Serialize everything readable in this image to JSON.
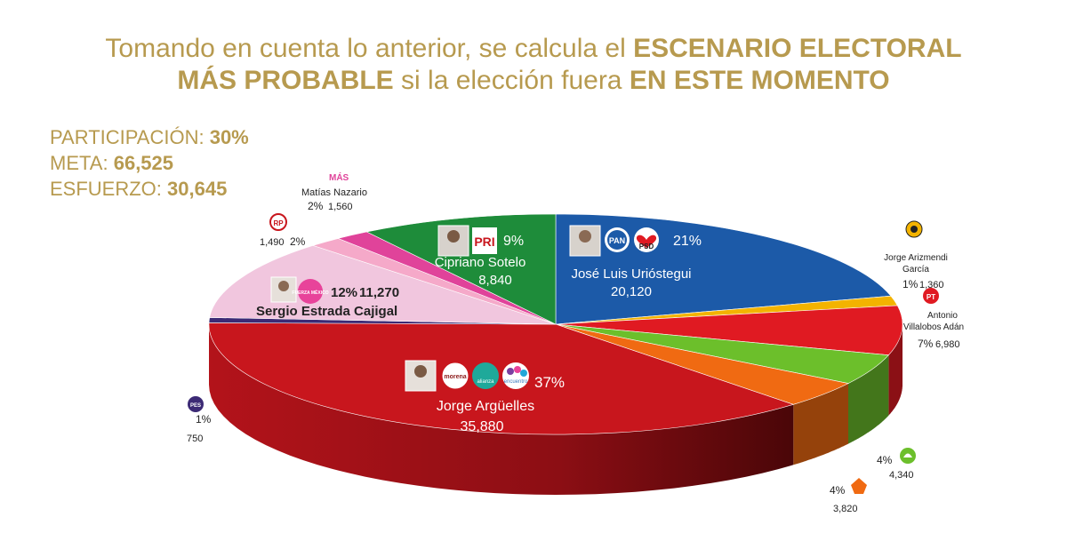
{
  "header": {
    "line1_pre": "Tomando en cuenta lo anterior, se calcula el ",
    "line1_bold": "ESCENARIO ELECTORAL",
    "line2_bold1": "MÁS PROBABLE",
    "line2_mid": " si la elección fuera ",
    "line2_bold2": "EN ESTE MOMENTO"
  },
  "stats": {
    "participacion_label": "PARTICIPACIÓN: ",
    "participacion_value": "30%",
    "meta_label": "META: ",
    "meta_value": "66,525",
    "esfuerzo_label": "ESFUERZO: ",
    "esfuerzo_value": "30,645"
  },
  "colors": {
    "title": "#b79a4f",
    "pan": "#1c5aa8",
    "pri": "#1e8c3a",
    "morena": "#c8161d",
    "fuerza": "#f1c6de",
    "pes": "#3c2a75"
  },
  "chart_data": {
    "type": "pie",
    "title": "Escenario electoral más probable",
    "series": [
      {
        "name": "José Luis Urióstegui",
        "parties": [
          "PAN",
          "PSD"
        ],
        "percent": 21,
        "votes": 20120,
        "color": "#1c5aa8"
      },
      {
        "name": "Jorge Arizmendi García",
        "parties": [
          "MC"
        ],
        "percent": 1,
        "votes": 1360,
        "color": "#f3b300"
      },
      {
        "name": "Antonio Villalobos Adán",
        "parties": [
          "PT"
        ],
        "percent": 7,
        "votes": 6980,
        "color": "#e01a22"
      },
      {
        "name": "",
        "parties": [
          "Partido Verde"
        ],
        "percent": 4,
        "votes": 4340,
        "color": "#6cbf2b"
      },
      {
        "name": "",
        "parties": [
          "Movimiento Ciudadano"
        ],
        "percent": 4,
        "votes": 3820,
        "color": "#f06a12"
      },
      {
        "name": "Jorge Argüelles",
        "parties": [
          "Morena",
          "Alianza",
          "Encuentro Social"
        ],
        "percent": 37,
        "votes": 35880,
        "color": "#c8161d"
      },
      {
        "name": "",
        "parties": [
          "PES"
        ],
        "percent": 1,
        "votes": 750,
        "color": "#3c2a75"
      },
      {
        "name": "Sergio Estrada Cajigal",
        "parties": [
          "Fuerza por México"
        ],
        "percent": 12,
        "votes": 11270,
        "color": "#f1c6de"
      },
      {
        "name": "",
        "parties": [
          "RP"
        ],
        "percent": 2,
        "votes": 1490,
        "color": "#f5a9c9"
      },
      {
        "name": "Matías Nazario",
        "parties": [
          "Más"
        ],
        "percent": 2,
        "votes": 1560,
        "color": "#e0439a"
      },
      {
        "name": "Cipriano Sotelo",
        "parties": [
          "PRI"
        ],
        "percent": 9,
        "votes": 8840,
        "color": "#1e8c3a"
      }
    ],
    "labels": {
      "uriostegui_pct": "21%",
      "uriostegui_name": "José Luis Urióstegui",
      "uriostegui_votes": "20,120",
      "sotelo_pct": "9%",
      "sotelo_name": "Cipriano Sotelo",
      "sotelo_votes": "8,840",
      "arguelles_pct": "37%",
      "arguelles_name": "Jorge Argüelles",
      "arguelles_votes": "35,880",
      "estrada_pct": "12%",
      "estrada_votes": "11,270",
      "estrada_name": "Sergio Estrada Cajigal",
      "nazario_name": "Matías Nazario",
      "nazario_pct": "2%",
      "nazario_votes": "1,560",
      "rp_votes": "1,490",
      "rp_pct": "2%",
      "arizmendi_name1": "Jorge Arizmendi",
      "arizmendi_name2": "García",
      "arizmendi_pct": "1%",
      "arizmendi_votes": "1,360",
      "villalobos_name1": "Antonio",
      "villalobos_name2": "Villalobos Adán",
      "villalobos_pct": "7%",
      "villalobos_votes": "6,980",
      "verde_pct": "4%",
      "verde_votes": "4,340",
      "mc_pct": "4%",
      "mc_votes": "3,820",
      "pes_pct": "1%",
      "pes_votes": "750"
    },
    "logos": {
      "pri": "PRI",
      "pan": "PAN",
      "psd": "PSD",
      "morena": "morena",
      "alianza": "alianza",
      "encuentro": "encuentro",
      "fuerza": "FUERZA MÉXICO",
      "mas": "MÁS",
      "rp": "RP",
      "pt": "PT",
      "pes": "PES"
    }
  }
}
